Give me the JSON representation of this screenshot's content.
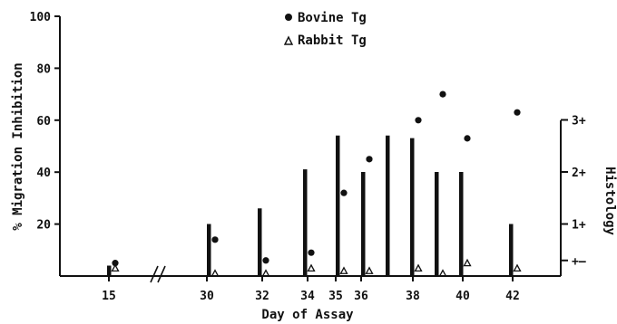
{
  "chart_data": {
    "type": "bar",
    "xlabel": "Day of Assay",
    "ylabel": "% Migration Inhibition",
    "ylabel_right": "Histology",
    "ylim": [
      0,
      100
    ],
    "y_ticks": [
      "20",
      "40",
      "60",
      "80",
      "100"
    ],
    "right_ticks": [
      "+–",
      "1+",
      "2+",
      "3+"
    ],
    "x_tick_labels": [
      "15",
      "30",
      "32",
      "34",
      "35",
      "36",
      "38",
      "40",
      "42"
    ],
    "axis_break": "between 15 and 30",
    "legend": {
      "placement": "top-center",
      "entries": [
        {
          "marker": "circle",
          "label": "Bovine Tg"
        },
        {
          "marker": "triangle",
          "label": "Rabbit Tg"
        }
      ]
    },
    "series": [
      {
        "name": "Histology",
        "kind": "bars",
        "scale": "right",
        "points": [
          {
            "day": 15,
            "grade": 0.2
          },
          {
            "day": 30,
            "grade": 1.0
          },
          {
            "day": 32,
            "grade": 1.3
          },
          {
            "day": 34,
            "grade": 2.05
          },
          {
            "day": 35,
            "grade": 2.7
          },
          {
            "day": 36,
            "grade": 2.0
          },
          {
            "day": 37,
            "grade": 2.7
          },
          {
            "day": 38,
            "grade": 2.65
          },
          {
            "day": 39,
            "grade": 2.0
          },
          {
            "day": 40,
            "grade": 2.0
          },
          {
            "day": 42,
            "grade": 1.0
          }
        ]
      },
      {
        "name": "Bovine Tg",
        "kind": "points",
        "marker": "circle",
        "scale": "left",
        "points": [
          {
            "day": 15,
            "value": 5
          },
          {
            "day": 30,
            "value": 14
          },
          {
            "day": 32,
            "value": 6
          },
          {
            "day": 34,
            "value": 9
          },
          {
            "day": 35,
            "value": 32
          },
          {
            "day": 36,
            "value": 45
          },
          {
            "day": 38,
            "value": 60
          },
          {
            "day": 39,
            "value": 70
          },
          {
            "day": 40,
            "value": 53
          },
          {
            "day": 42,
            "value": 63
          }
        ]
      },
      {
        "name": "Rabbit Tg",
        "kind": "points",
        "marker": "triangle",
        "scale": "left",
        "points": [
          {
            "day": 15,
            "value": 3
          },
          {
            "day": 30,
            "value": 1
          },
          {
            "day": 32,
            "value": 1
          },
          {
            "day": 34,
            "value": 3
          },
          {
            "day": 35,
            "value": 2
          },
          {
            "day": 36,
            "value": 2
          },
          {
            "day": 38,
            "value": 3
          },
          {
            "day": 39,
            "value": 1
          },
          {
            "day": 40,
            "value": 5
          },
          {
            "day": 42,
            "value": 3
          }
        ]
      }
    ]
  }
}
